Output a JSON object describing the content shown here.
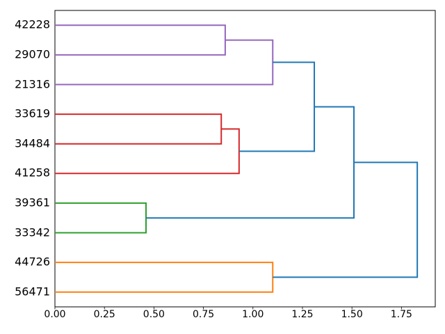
{
  "chart_data": {
    "type": "dendrogram",
    "title": "",
    "xlabel": "",
    "ylabel": "",
    "orientation": "leaves-left-root-right",
    "grid": false,
    "legend": null,
    "leaves_top_to_bottom": [
      "42228",
      "29070",
      "21316",
      "33619",
      "34484",
      "41258",
      "39361",
      "33342",
      "44726",
      "56471"
    ],
    "xticklabels": [
      "0.00",
      "0.25",
      "0.50",
      "0.75",
      "1.00",
      "1.25",
      "1.50",
      "1.75"
    ],
    "xtick_values": [
      0.0,
      0.25,
      0.5,
      0.75,
      1.0,
      1.25,
      1.5,
      1.75
    ],
    "xlim": [
      0,
      1.9215
    ],
    "ylim_leaf_positions": [
      0,
      100
    ],
    "colors": {
      "blue": "#1f77b4",
      "orange": "#ff7f0e",
      "green": "#2ca02c",
      "red": "#d62728",
      "purple": "#9467bd"
    },
    "links": [
      {
        "id": "M0",
        "a": "L6",
        "b": "L7",
        "dist": 0.46,
        "color": "green",
        "note": "39361 + 33342"
      },
      {
        "id": "M1",
        "a": "L3",
        "b": "L4",
        "dist": 0.84,
        "color": "red",
        "note": "33619 + 34484"
      },
      {
        "id": "M2",
        "a": "L0",
        "b": "L1",
        "dist": 0.86,
        "color": "purple",
        "note": "42228 + 29070"
      },
      {
        "id": "M3",
        "a": "M1",
        "b": "L5",
        "dist": 0.93,
        "color": "red",
        "note": "(33619,34484) + 41258"
      },
      {
        "id": "M4",
        "a": "M2",
        "b": "L2",
        "dist": 1.1,
        "color": "purple",
        "note": "(42228,29070) + 21316"
      },
      {
        "id": "M5",
        "a": "L8",
        "b": "L9",
        "dist": 1.1,
        "color": "orange",
        "note": "44726 + 56471"
      },
      {
        "id": "M6",
        "a": "M4",
        "b": "M3",
        "dist": 1.31,
        "color": "blue",
        "note": "purple cluster + red cluster"
      },
      {
        "id": "M7",
        "a": "M6",
        "b": "M0",
        "dist": 1.51,
        "color": "blue",
        "note": "+ green cluster"
      },
      {
        "id": "M8",
        "a": "M7",
        "b": "M5",
        "dist": 1.83,
        "color": "blue",
        "note": "root: + orange cluster"
      }
    ]
  }
}
